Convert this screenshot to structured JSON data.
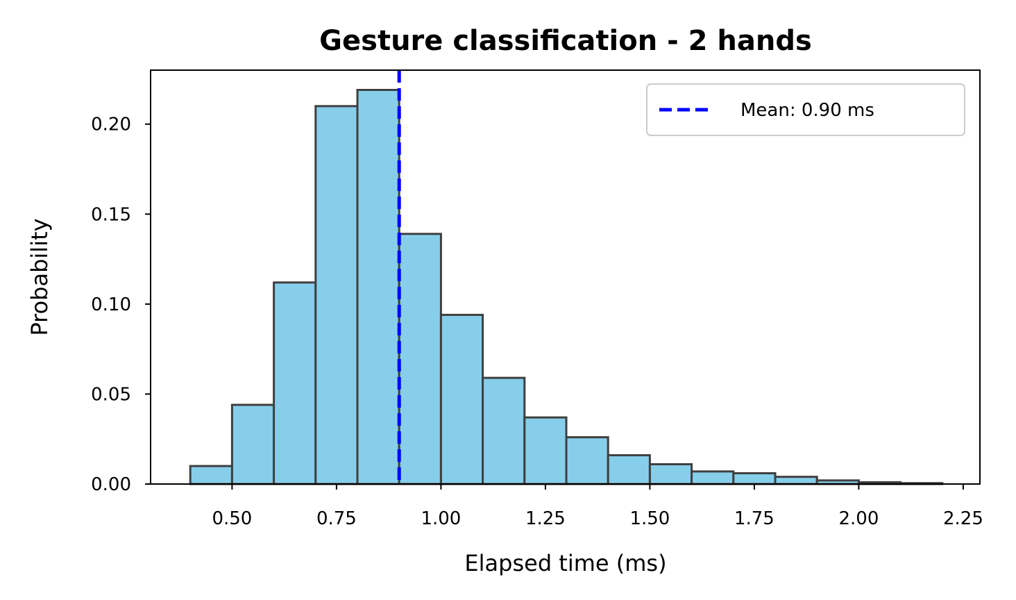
{
  "chart_data": {
    "type": "bar",
    "subtype": "histogram",
    "title": "Gesture classification - 2 hands",
    "xlabel": "Elapsed time (ms)",
    "ylabel": "Probability",
    "xlim": [
      0.305,
      2.29
    ],
    "ylim": [
      0,
      0.23
    ],
    "xticks": [
      0.5,
      0.75,
      1.0,
      1.25,
      1.5,
      1.75,
      2.0,
      2.25
    ],
    "xtick_labels": [
      "0.50",
      "0.75",
      "1.00",
      "1.25",
      "1.50",
      "1.75",
      "2.00",
      "2.25"
    ],
    "yticks": [
      0.0,
      0.05,
      0.1,
      0.15,
      0.2
    ],
    "ytick_labels": [
      "0.00",
      "0.05",
      "0.10",
      "0.15",
      "0.20"
    ],
    "bin_width": 0.1,
    "bins": [
      {
        "start": 0.4,
        "end": 0.5,
        "value": 0.01
      },
      {
        "start": 0.5,
        "end": 0.6,
        "value": 0.044
      },
      {
        "start": 0.6,
        "end": 0.7,
        "value": 0.112
      },
      {
        "start": 0.7,
        "end": 0.8,
        "value": 0.21
      },
      {
        "start": 0.8,
        "end": 0.9,
        "value": 0.219
      },
      {
        "start": 0.9,
        "end": 1.0,
        "value": 0.139
      },
      {
        "start": 1.0,
        "end": 1.1,
        "value": 0.094
      },
      {
        "start": 1.1,
        "end": 1.2,
        "value": 0.059
      },
      {
        "start": 1.2,
        "end": 1.3,
        "value": 0.037
      },
      {
        "start": 1.3,
        "end": 1.4,
        "value": 0.026
      },
      {
        "start": 1.4,
        "end": 1.5,
        "value": 0.016
      },
      {
        "start": 1.5,
        "end": 1.6,
        "value": 0.011
      },
      {
        "start": 1.6,
        "end": 1.7,
        "value": 0.007
      },
      {
        "start": 1.7,
        "end": 1.8,
        "value": 0.006
      },
      {
        "start": 1.8,
        "end": 1.9,
        "value": 0.004
      },
      {
        "start": 1.9,
        "end": 2.0,
        "value": 0.002
      },
      {
        "start": 2.0,
        "end": 2.1,
        "value": 0.001
      },
      {
        "start": 2.1,
        "end": 2.2,
        "value": 0.0005
      }
    ],
    "mean_line": {
      "x": 0.9,
      "label": "Mean: 0.90 ms",
      "style": "dashed",
      "color": "#0000ff"
    },
    "bar_color": "#87ceeb",
    "bar_edge_color": "#3f3f3f",
    "legend_position": "top-right",
    "grid": false
  }
}
